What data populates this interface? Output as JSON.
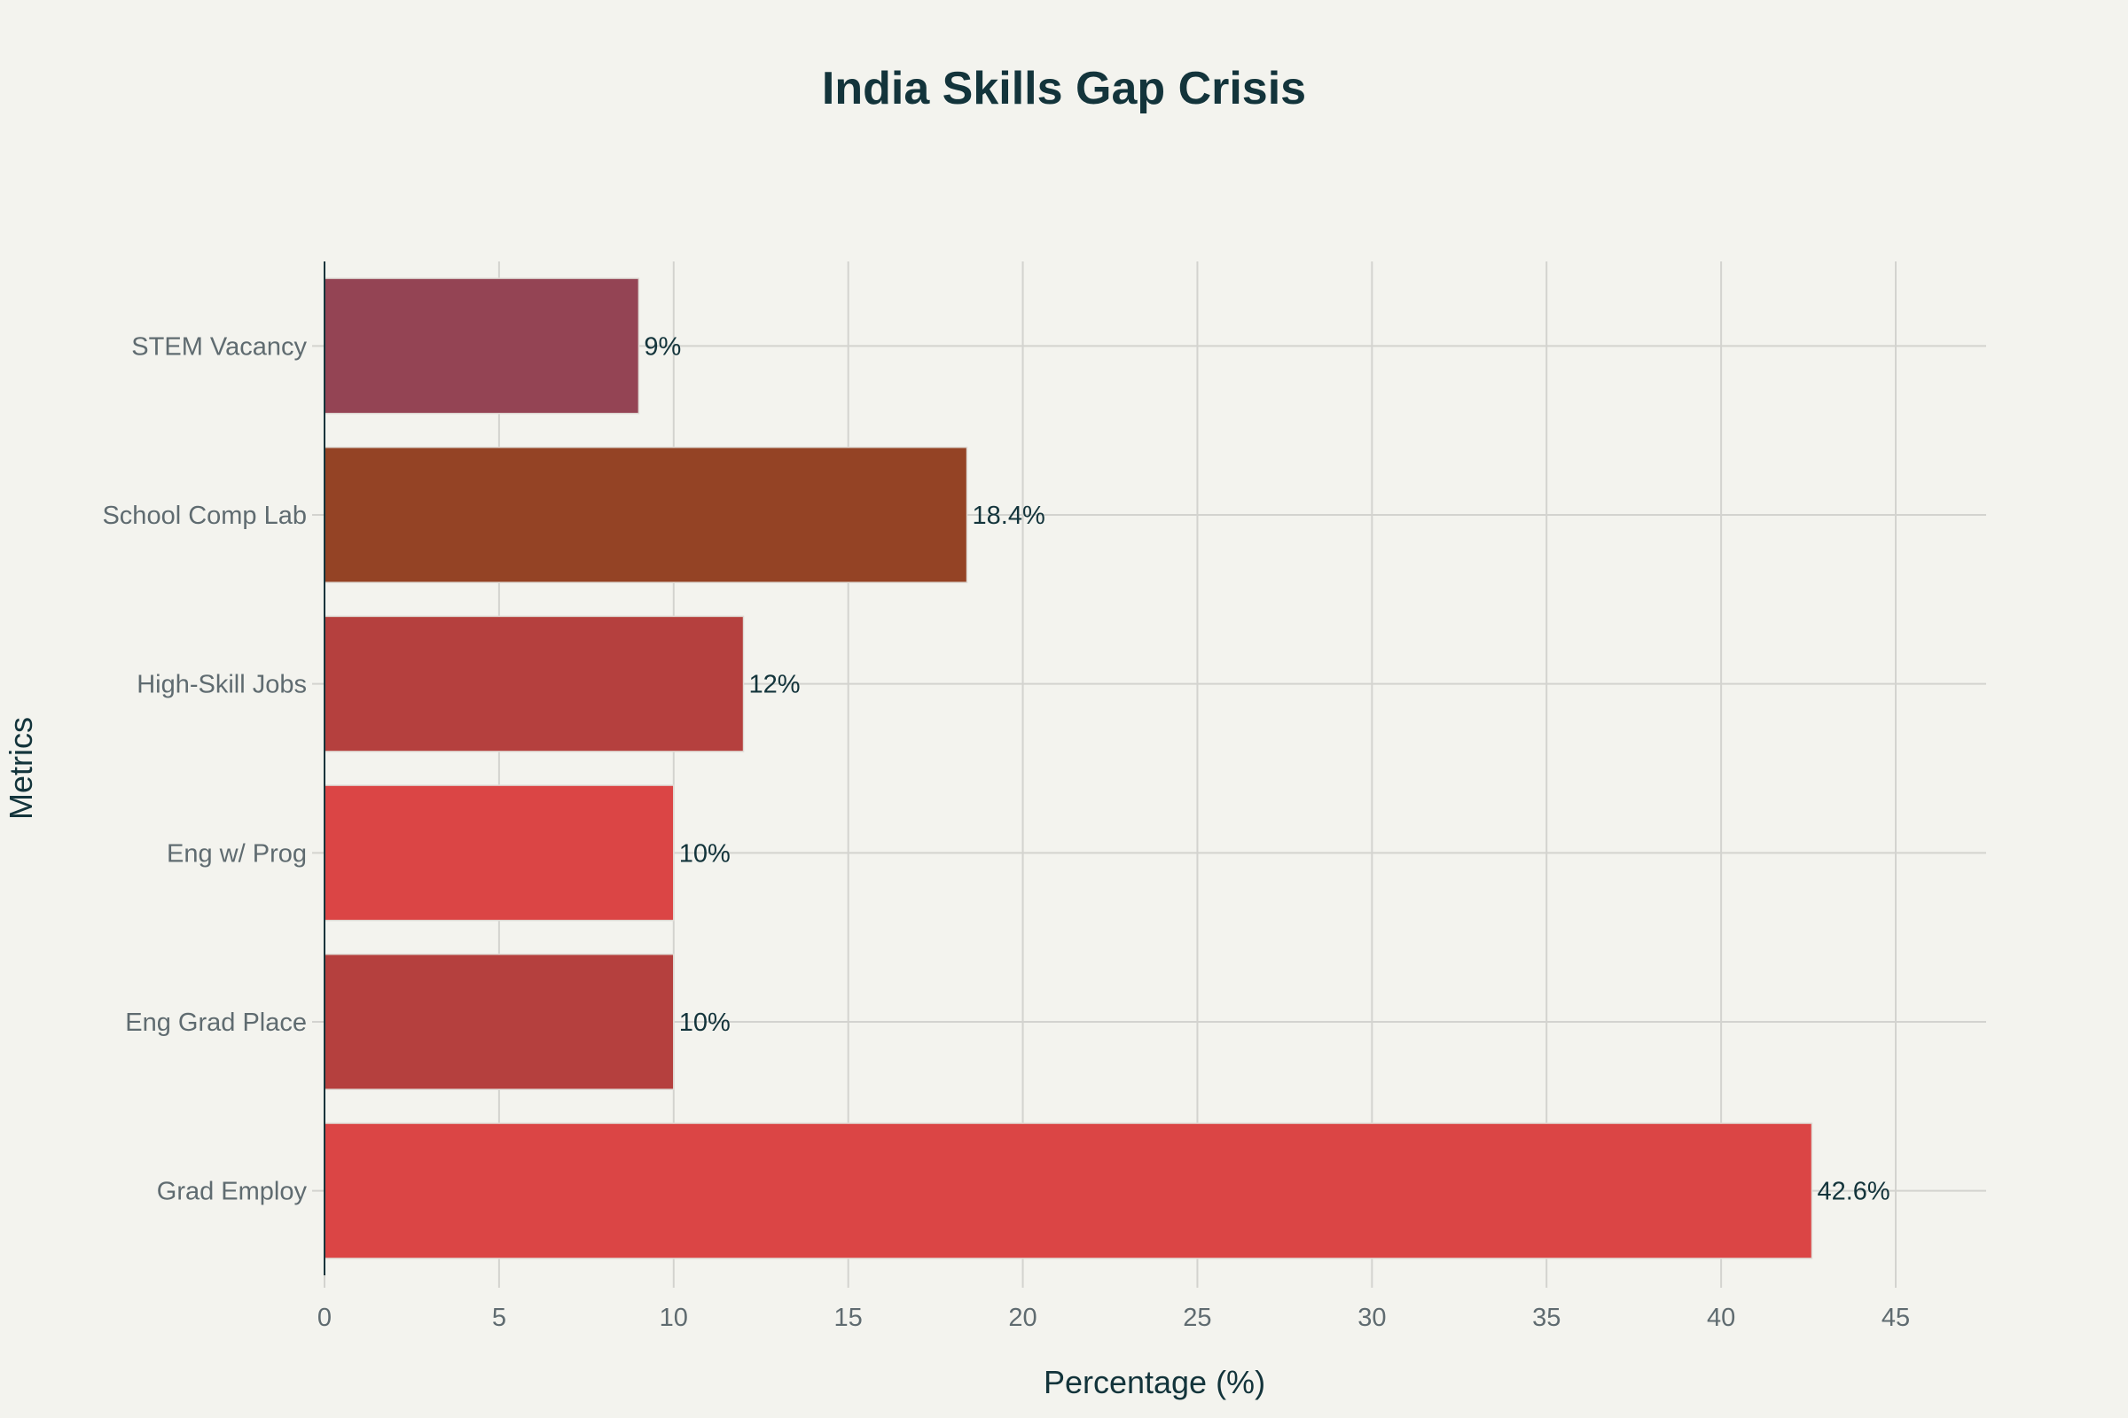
{
  "chart_data": {
    "type": "bar",
    "orientation": "horizontal",
    "title": "India Skills Gap Crisis",
    "xlabel": "Percentage (%)",
    "ylabel": "Metrics",
    "xlim": [
      0,
      47.6
    ],
    "xticks": [
      0,
      5,
      10,
      15,
      20,
      25,
      30,
      35,
      40,
      45
    ],
    "grid": true,
    "categories": [
      "STEM Vacancy",
      "School Comp Lab",
      "High-Skill Jobs",
      "Eng w/ Prog",
      "Eng Grad Place",
      "Grad Employ"
    ],
    "values": [
      9,
      18.4,
      12,
      10,
      10,
      42.6
    ],
    "labels": [
      "9%",
      "18.4%",
      "12%",
      "10%",
      "10%",
      "42.6%"
    ],
    "colors": [
      "#944454",
      "#944325",
      "#b5403e",
      "#db4545",
      "#b5403e",
      "#db4545"
    ],
    "background": "#f3f3ee"
  }
}
